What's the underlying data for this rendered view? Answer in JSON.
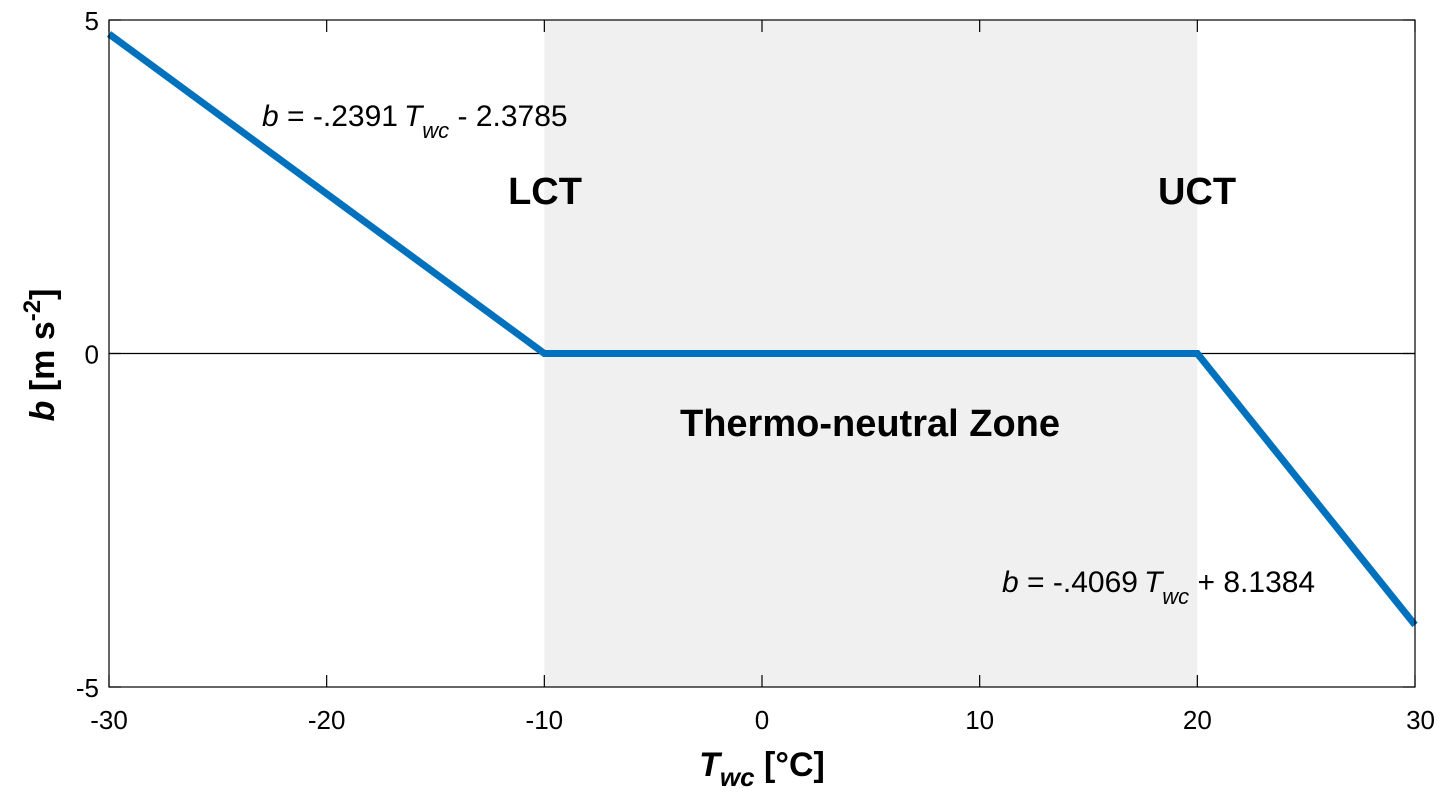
{
  "chart_data": {
    "type": "line",
    "xlabel": {
      "main": "T",
      "sub": "wc",
      "unit": " [°C]"
    },
    "ylabel": {
      "main": "b",
      "unit": " [m s",
      "sup": "-2",
      "close": "]"
    },
    "xlim": [
      -30,
      30
    ],
    "ylim": [
      -5,
      5
    ],
    "xticks": [
      -30,
      -20,
      -10,
      0,
      10,
      20,
      30
    ],
    "yticks": [
      -5,
      0,
      5
    ],
    "xtick_labels": [
      "-30",
      "-20",
      "-10",
      "0",
      "10",
      "20",
      "30"
    ],
    "ytick_labels": [
      "-5",
      "0",
      "5"
    ],
    "series": [
      {
        "x": [
          -30,
          -10,
          20,
          30
        ],
        "y": [
          4.79,
          0,
          0,
          -4.07
        ],
        "color": "#0072BD"
      }
    ],
    "shaded_region": {
      "x": [
        -10,
        20
      ],
      "color": "#F0F0F0"
    },
    "zero_line": 0,
    "annotations": {
      "lct": "LCT",
      "uct": "UCT",
      "zone": "Thermo-neutral Zone",
      "eq_left": {
        "var": "b",
        "text1": " = -.2391",
        "T": "T",
        "sub": "wc",
        "text2": " - 2.3785"
      },
      "eq_right": {
        "var": "b",
        "text1": " = -.4069",
        "T": "T",
        "sub": "wc",
        "text2": " + 8.1384"
      }
    },
    "grid": false
  }
}
